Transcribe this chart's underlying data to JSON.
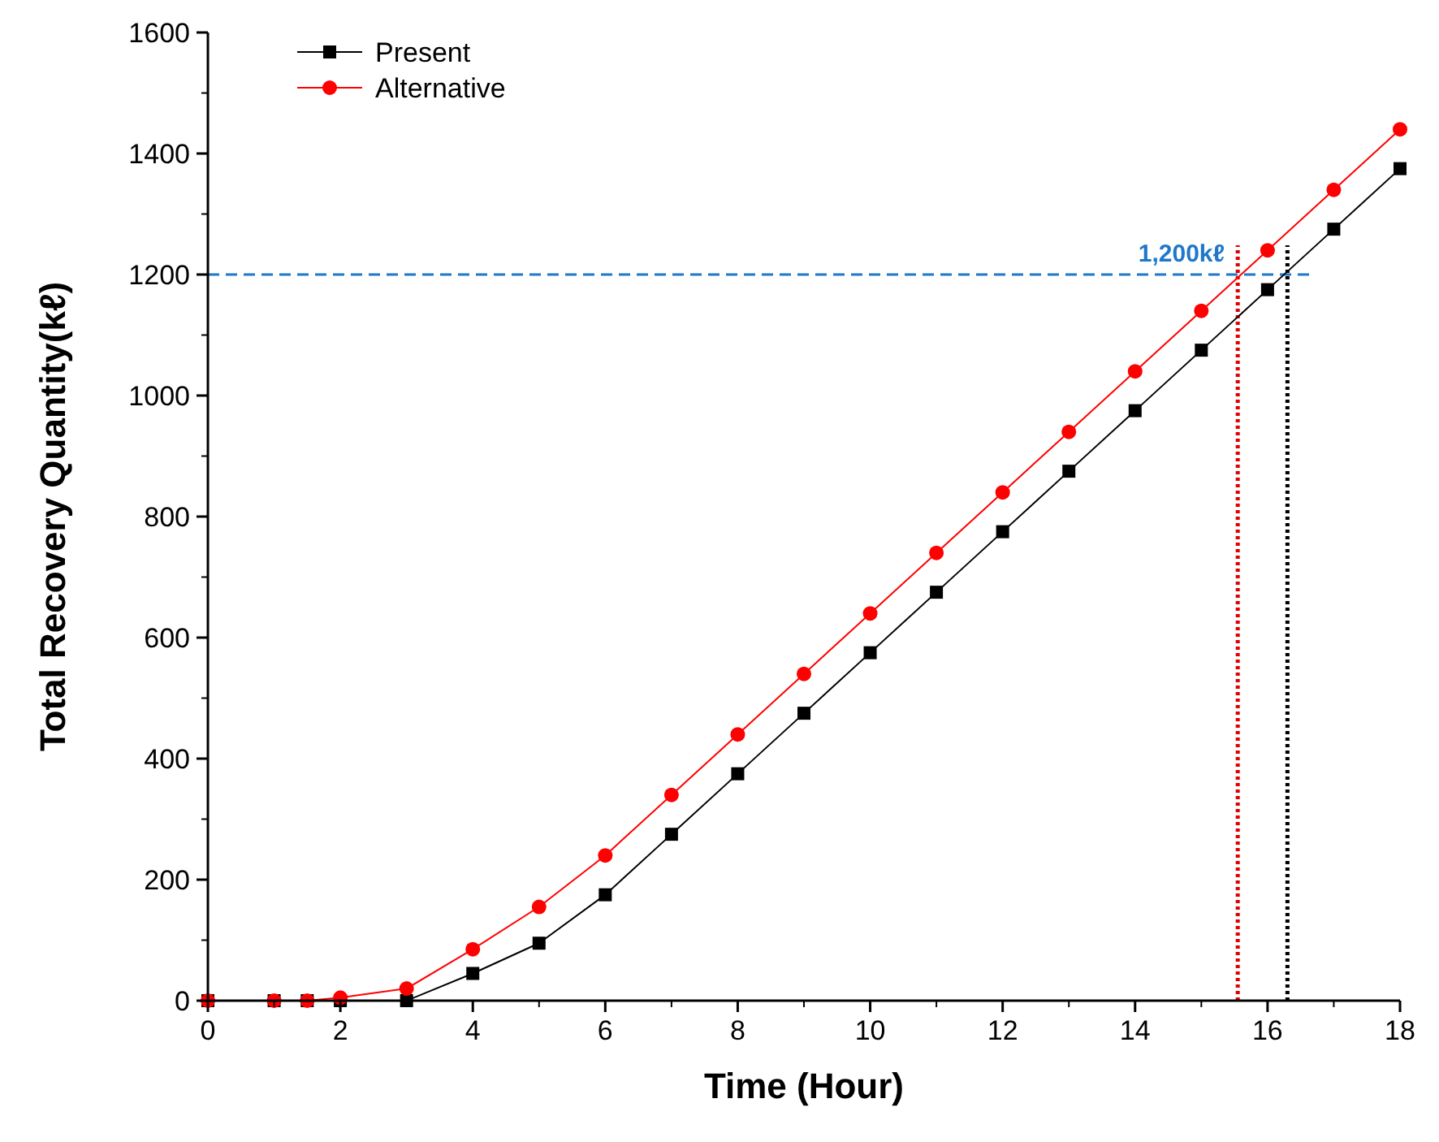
{
  "chart_data": {
    "type": "line",
    "xlabel": "Time (Hour)",
    "ylabel": "Total Recovery Quantity(kℓ)",
    "xlim": [
      0,
      18
    ],
    "ylim": [
      0,
      1600
    ],
    "xticks": [
      0,
      2,
      4,
      6,
      8,
      10,
      12,
      14,
      16,
      18
    ],
    "yticks": [
      0,
      200,
      400,
      600,
      800,
      1000,
      1200,
      1400,
      1600
    ],
    "grid": false,
    "legend": "top left",
    "line_style": "solid",
    "series": [
      {
        "name": "Present",
        "color": "#000000",
        "marker": "square",
        "x": [
          0,
          1,
          1.5,
          2,
          3,
          4,
          5,
          6,
          7,
          8,
          9,
          10,
          11,
          12,
          13,
          14,
          15,
          16,
          17,
          18
        ],
        "values": [
          0,
          0,
          0,
          0,
          0,
          45,
          95,
          175,
          275,
          375,
          475,
          575,
          675,
          775,
          875,
          975,
          1075,
          1175,
          1275,
          1375
        ]
      },
      {
        "name": "Alternative",
        "color": "#ff0000",
        "marker": "circle",
        "x": [
          0,
          1,
          1.5,
          2,
          3,
          4,
          5,
          6,
          7,
          8,
          9,
          10,
          11,
          12,
          13,
          14,
          15,
          16,
          17,
          18
        ],
        "values": [
          0,
          0,
          0,
          5,
          20,
          85,
          155,
          240,
          340,
          440,
          540,
          640,
          740,
          840,
          940,
          1040,
          1140,
          1240,
          1340,
          1440
        ]
      }
    ],
    "ref_lines": [
      {
        "axis": "y",
        "value": 1200,
        "label": "1,200kℓ",
        "color": "#1f78c8",
        "line_style": "dashed"
      },
      {
        "axis": "x",
        "value": 15.55,
        "label": null,
        "color": "#e00000",
        "line_style": "dotted"
      },
      {
        "axis": "x",
        "value": 16.3,
        "label": null,
        "color": "#000000",
        "line_style": "dotted"
      }
    ]
  }
}
